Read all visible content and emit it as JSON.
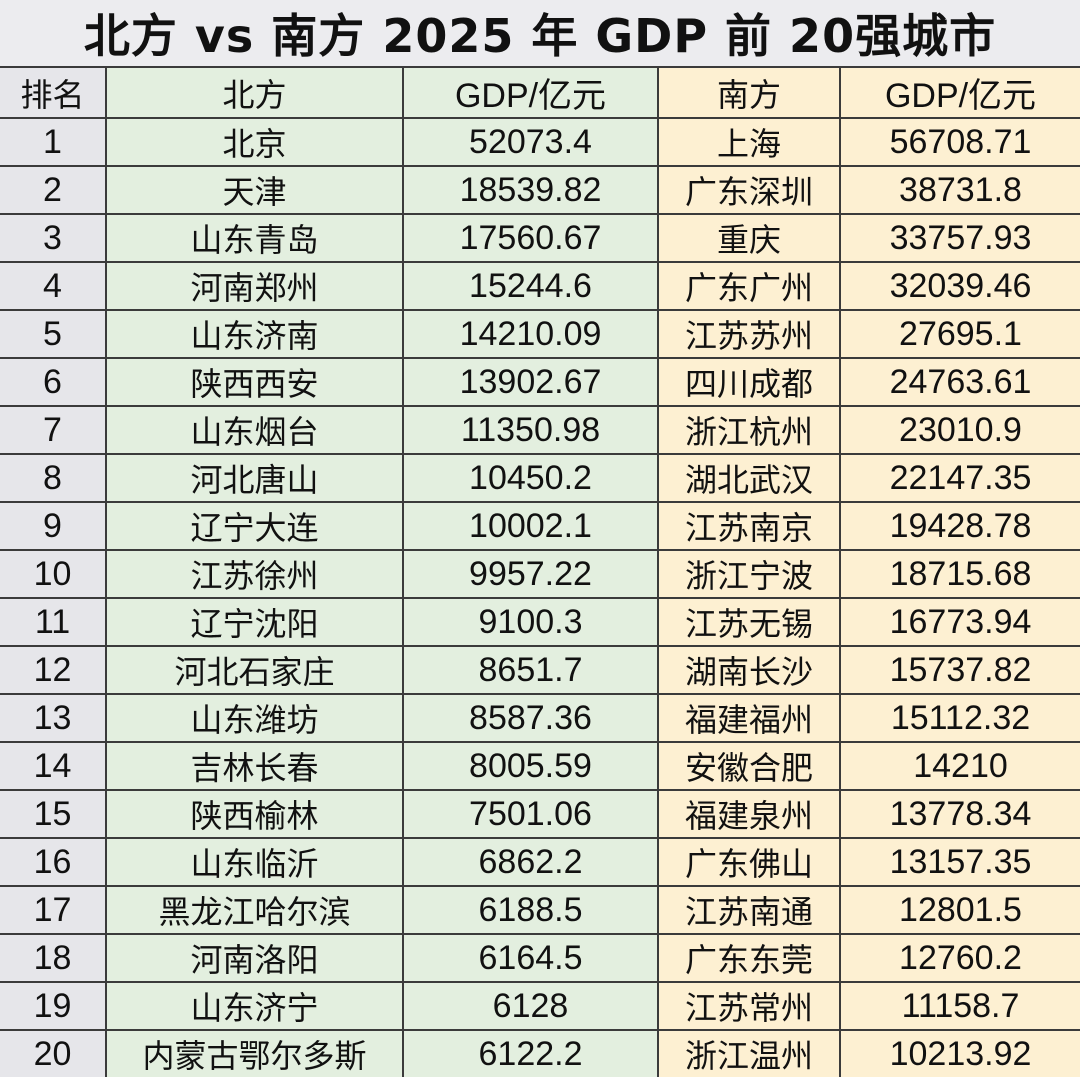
{
  "title": "北方 vs 南方 2025 年 GDP 前 20强城市",
  "headers": {
    "rank": "排名",
    "north_city": "北方",
    "north_gdp": "GDP/亿元",
    "south_city": "南方",
    "south_gdp": "GDP/亿元"
  },
  "colors": {
    "rank_bg": "#e6e6ea",
    "north_bg": "#e3efdf",
    "south_bg": "#fdf0d2",
    "border": "#3b3b3b"
  },
  "rows": [
    {
      "rank": "1",
      "north_city": "北京",
      "north_gdp": "52073.4",
      "south_city": "上海",
      "south_gdp": "56708.71"
    },
    {
      "rank": "2",
      "north_city": "天津",
      "north_gdp": "18539.82",
      "south_city": "广东深圳",
      "south_gdp": "38731.8"
    },
    {
      "rank": "3",
      "north_city": "山东青岛",
      "north_gdp": "17560.67",
      "south_city": "重庆",
      "south_gdp": "33757.93"
    },
    {
      "rank": "4",
      "north_city": "河南郑州",
      "north_gdp": "15244.6",
      "south_city": "广东广州",
      "south_gdp": "32039.46"
    },
    {
      "rank": "5",
      "north_city": "山东济南",
      "north_gdp": "14210.09",
      "south_city": "江苏苏州",
      "south_gdp": "27695.1"
    },
    {
      "rank": "6",
      "north_city": "陕西西安",
      "north_gdp": "13902.67",
      "south_city": "四川成都",
      "south_gdp": "24763.61"
    },
    {
      "rank": "7",
      "north_city": "山东烟台",
      "north_gdp": "11350.98",
      "south_city": "浙江杭州",
      "south_gdp": "23010.9"
    },
    {
      "rank": "8",
      "north_city": "河北唐山",
      "north_gdp": "10450.2",
      "south_city": "湖北武汉",
      "south_gdp": "22147.35"
    },
    {
      "rank": "9",
      "north_city": "辽宁大连",
      "north_gdp": "10002.1",
      "south_city": "江苏南京",
      "south_gdp": "19428.78"
    },
    {
      "rank": "10",
      "north_city": "江苏徐州",
      "north_gdp": "9957.22",
      "south_city": "浙江宁波",
      "south_gdp": "18715.68"
    },
    {
      "rank": "11",
      "north_city": "辽宁沈阳",
      "north_gdp": "9100.3",
      "south_city": "江苏无锡",
      "south_gdp": "16773.94"
    },
    {
      "rank": "12",
      "north_city": "河北石家庄",
      "north_gdp": "8651.7",
      "south_city": "湖南长沙",
      "south_gdp": "15737.82"
    },
    {
      "rank": "13",
      "north_city": "山东潍坊",
      "north_gdp": "8587.36",
      "south_city": "福建福州",
      "south_gdp": "15112.32"
    },
    {
      "rank": "14",
      "north_city": "吉林长春",
      "north_gdp": "8005.59",
      "south_city": "安徽合肥",
      "south_gdp": "14210"
    },
    {
      "rank": "15",
      "north_city": "陕西榆林",
      "north_gdp": "7501.06",
      "south_city": "福建泉州",
      "south_gdp": "13778.34"
    },
    {
      "rank": "16",
      "north_city": "山东临沂",
      "north_gdp": "6862.2",
      "south_city": "广东佛山",
      "south_gdp": "13157.35"
    },
    {
      "rank": "17",
      "north_city": "黑龙江哈尔滨",
      "north_gdp": "6188.5",
      "south_city": "江苏南通",
      "south_gdp": "12801.5"
    },
    {
      "rank": "18",
      "north_city": "河南洛阳",
      "north_gdp": "6164.5",
      "south_city": "广东东莞",
      "south_gdp": "12760.2"
    },
    {
      "rank": "19",
      "north_city": "山东济宁",
      "north_gdp": "6128",
      "south_city": "江苏常州",
      "south_gdp": "11158.7"
    },
    {
      "rank": "20",
      "north_city": "内蒙古鄂尔多斯",
      "north_gdp": "6122.2",
      "south_city": "浙江温州",
      "south_gdp": "10213.92"
    }
  ]
}
